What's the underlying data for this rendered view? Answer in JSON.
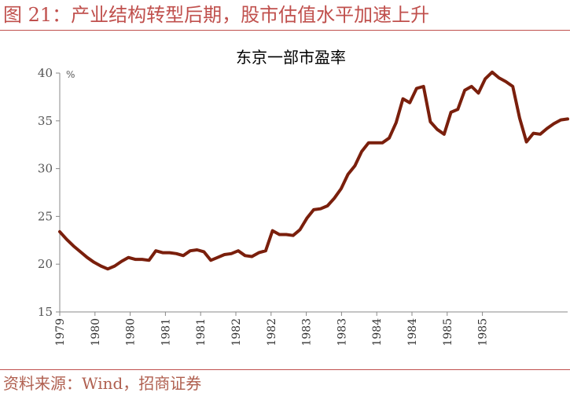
{
  "header": {
    "figure_title": "图 21：产业结构转型后期，股市估值水平加速上升"
  },
  "footer": {
    "source": "资料来源：Wind，招商证券"
  },
  "colors": {
    "accent": "#c0504d",
    "series": "#7a1f0c"
  },
  "chart_data": {
    "type": "line",
    "title": "东京一部市盈率",
    "xlabel": "",
    "ylabel": "",
    "y_unit": "%",
    "ylim": [
      15,
      40
    ],
    "yticks": [
      15,
      20,
      25,
      30,
      35,
      40
    ],
    "x_tick_labels": [
      "1979",
      "1980",
      "1980",
      "1981",
      "1981",
      "1982",
      "1982",
      "1983",
      "1983",
      "1984",
      "1984",
      "1985",
      "1985"
    ],
    "grid": false,
    "legend": "none",
    "series": [
      {
        "values": [
          23.4,
          22.6,
          21.9,
          21.3,
          20.7,
          20.2,
          19.8,
          19.5,
          19.8,
          20.3,
          20.7,
          20.5,
          20.5,
          20.4,
          21.4,
          21.2,
          21.2,
          21.1,
          20.9,
          21.4,
          21.5,
          21.3,
          20.4,
          20.7,
          21.0,
          21.1,
          21.4,
          20.9,
          20.8,
          21.2,
          21.4,
          23.5,
          23.1,
          23.1,
          23.0,
          23.6,
          24.8,
          25.7,
          25.8,
          26.1,
          26.9,
          27.9,
          29.4,
          30.3,
          31.8,
          32.7,
          32.7,
          32.7,
          33.2,
          34.8,
          37.3,
          36.9,
          38.4,
          38.6,
          34.9,
          34.1,
          33.6,
          35.9,
          36.2,
          38.2,
          38.6,
          37.9,
          39.4,
          40.1,
          39.5,
          39.1,
          38.6,
          35.3,
          32.8,
          33.7,
          33.6,
          34.2,
          34.7,
          35.1,
          35.2
        ]
      }
    ]
  }
}
